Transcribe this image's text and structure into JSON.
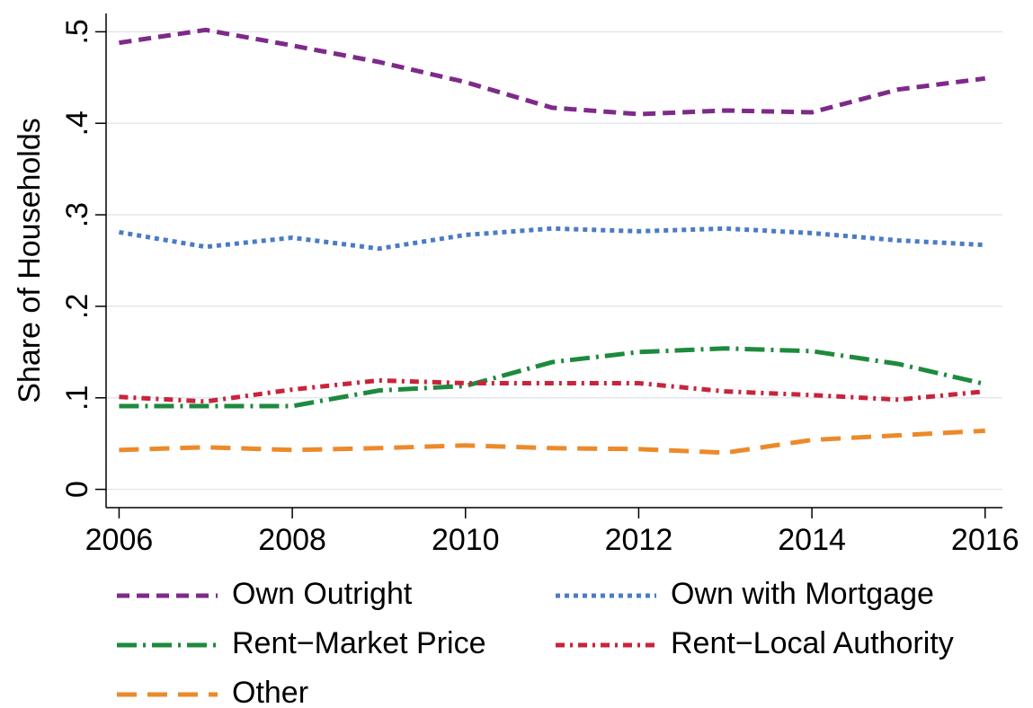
{
  "chart_data": {
    "type": "line",
    "y_label": "Share of Households",
    "x": [
      2006,
      2007,
      2008,
      2009,
      2010,
      2011,
      2012,
      2013,
      2014,
      2015,
      2016
    ],
    "xlim": [
      2005.85,
      2016.2
    ],
    "xticks": [
      2006,
      2008,
      2010,
      2012,
      2014,
      2016
    ],
    "ylim": [
      -0.02,
      0.52
    ],
    "yticks": [
      0,
      {
        "value": 0.1,
        "label": ".1"
      },
      {
        "value": 0.2,
        "label": ".2"
      },
      {
        "value": 0.3,
        "label": ".3"
      },
      {
        "value": 0.4,
        "label": ".4"
      },
      {
        "value": 0.5,
        "label": ".5"
      }
    ],
    "grid": true,
    "series": [
      {
        "name": "Own Outright",
        "color": "#7e2a8a",
        "style": "dash",
        "values": [
          0.488,
          0.502,
          0.485,
          0.467,
          0.445,
          0.417,
          0.41,
          0.414,
          0.412,
          0.437,
          0.449
        ]
      },
      {
        "name": "Own with Mortgage",
        "color": "#4a7cc4",
        "style": "dot",
        "values": [
          0.281,
          0.265,
          0.275,
          0.263,
          0.278,
          0.285,
          0.282,
          0.285,
          0.28,
          0.272,
          0.267
        ]
      },
      {
        "name": "Rent−Market Price",
        "color": "#1d8a3e",
        "style": "longdashdot",
        "values": [
          0.091,
          0.091,
          0.091,
          0.108,
          0.113,
          0.139,
          0.15,
          0.154,
          0.151,
          0.137,
          0.115
        ]
      },
      {
        "name": "Rent−Local Authority",
        "color": "#c8243b",
        "style": "dashdot",
        "values": [
          0.101,
          0.096,
          0.109,
          0.119,
          0.116,
          0.116,
          0.116,
          0.107,
          0.103,
          0.098,
          0.107
        ]
      },
      {
        "name": "Other",
        "color": "#ec8a2a",
        "style": "longdash",
        "values": [
          0.043,
          0.046,
          0.043,
          0.045,
          0.048,
          0.045,
          0.044,
          0.04,
          0.054,
          0.059,
          0.064
        ]
      }
    ]
  }
}
